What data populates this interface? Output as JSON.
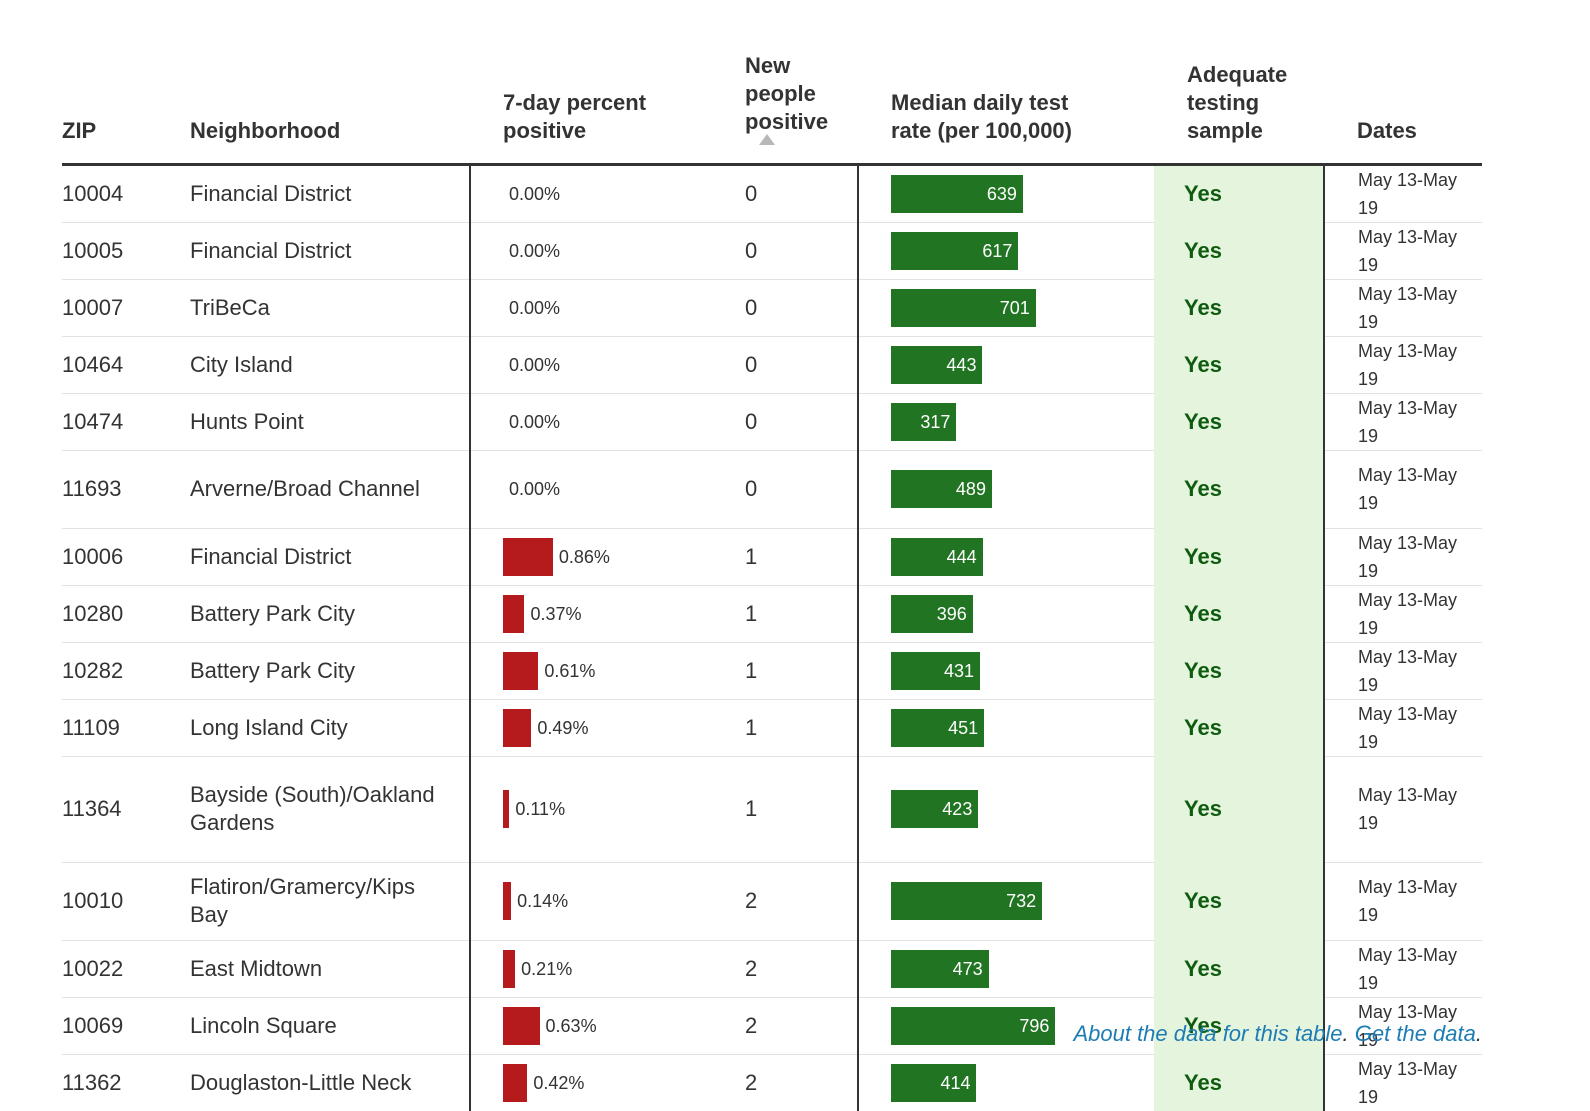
{
  "chart_data": {
    "type": "table",
    "columns": [
      {
        "key": "zip",
        "label": "ZIP"
      },
      {
        "key": "neighborhood",
        "label": "Neighborhood"
      },
      {
        "key": "pct_positive",
        "label": "7-day percent\npositive"
      },
      {
        "key": "new_positive",
        "label": "New\npeople\npositive",
        "sorted": "ascending"
      },
      {
        "key": "test_rate",
        "label": "Median daily test\nrate (per 100,000)"
      },
      {
        "key": "adequate",
        "label": "Adequate\ntesting\nsample"
      },
      {
        "key": "dates",
        "label": "Dates"
      }
    ],
    "rows": [
      {
        "zip": "10004",
        "neighborhood": "Financial District",
        "pct_positive": 0.0,
        "pct_label": "0.00%",
        "new_positive": "0",
        "test_rate": 639,
        "adequate": "Yes",
        "dates": "May 13-May 19",
        "lines": 1
      },
      {
        "zip": "10005",
        "neighborhood": "Financial District",
        "pct_positive": 0.0,
        "pct_label": "0.00%",
        "new_positive": "0",
        "test_rate": 617,
        "adequate": "Yes",
        "dates": "May 13-May 19",
        "lines": 1
      },
      {
        "zip": "10007",
        "neighborhood": "TriBeCa",
        "pct_positive": 0.0,
        "pct_label": "0.00%",
        "new_positive": "0",
        "test_rate": 701,
        "adequate": "Yes",
        "dates": "May 13-May 19",
        "lines": 1
      },
      {
        "zip": "10464",
        "neighborhood": "City Island",
        "pct_positive": 0.0,
        "pct_label": "0.00%",
        "new_positive": "0",
        "test_rate": 443,
        "adequate": "Yes",
        "dates": "May 13-May 19",
        "lines": 1
      },
      {
        "zip": "10474",
        "neighborhood": "Hunts Point",
        "pct_positive": 0.0,
        "pct_label": "0.00%",
        "new_positive": "0",
        "test_rate": 317,
        "adequate": "Yes",
        "dates": "May 13-May 19",
        "lines": 1
      },
      {
        "zip": "11693",
        "neighborhood": "Arverne/Broad Channel",
        "pct_positive": 0.0,
        "pct_label": "0.00%",
        "new_positive": "0",
        "test_rate": 489,
        "adequate": "Yes",
        "dates": "May 13-May 19",
        "lines": 2
      },
      {
        "zip": "10006",
        "neighborhood": "Financial District",
        "pct_positive": 0.86,
        "pct_label": "0.86%",
        "new_positive": "1",
        "test_rate": 444,
        "adequate": "Yes",
        "dates": "May 13-May 19",
        "lines": 1
      },
      {
        "zip": "10280",
        "neighborhood": "Battery Park City",
        "pct_positive": 0.37,
        "pct_label": "0.37%",
        "new_positive": "1",
        "test_rate": 396,
        "adequate": "Yes",
        "dates": "May 13-May 19",
        "lines": 1
      },
      {
        "zip": "10282",
        "neighborhood": "Battery Park City",
        "pct_positive": 0.61,
        "pct_label": "0.61%",
        "new_positive": "1",
        "test_rate": 431,
        "adequate": "Yes",
        "dates": "May 13-May 19",
        "lines": 1
      },
      {
        "zip": "11109",
        "neighborhood": "Long Island City",
        "pct_positive": 0.49,
        "pct_label": "0.49%",
        "new_positive": "1",
        "test_rate": 451,
        "adequate": "Yes",
        "dates": "May 13-May 19",
        "lines": 1
      },
      {
        "zip": "11364",
        "neighborhood": "Bayside (South)/Oakland Gardens",
        "pct_positive": 0.11,
        "pct_label": "0.11%",
        "new_positive": "1",
        "test_rate": 423,
        "adequate": "Yes",
        "dates": "May 13-May 19",
        "lines": 3
      },
      {
        "zip": "10010",
        "neighborhood": "Flatiron/Gramercy/Kips Bay",
        "pct_positive": 0.14,
        "pct_label": "0.14%",
        "new_positive": "2",
        "test_rate": 732,
        "adequate": "Yes",
        "dates": "May 13-May 19",
        "lines": 2
      },
      {
        "zip": "10022",
        "neighborhood": "East Midtown",
        "pct_positive": 0.21,
        "pct_label": "0.21%",
        "new_positive": "2",
        "test_rate": 473,
        "adequate": "Yes",
        "dates": "May 13-May 19",
        "lines": 1
      },
      {
        "zip": "10069",
        "neighborhood": "Lincoln Square",
        "pct_positive": 0.63,
        "pct_label": "0.63%",
        "new_positive": "2",
        "test_rate": 796,
        "adequate": "Yes",
        "dates": "May 13-May 19",
        "lines": 1
      },
      {
        "zip": "11362",
        "neighborhood": "Douglaston-Little Neck",
        "pct_positive": 0.42,
        "pct_label": "0.42%",
        "new_positive": "2",
        "test_rate": 414,
        "adequate": "Yes",
        "dates": "May 13-May 19",
        "lines": 1
      }
    ],
    "pct_bar_color": "#b51b1c",
    "rate_bar_color": "#217522",
    "adequate_bg_color": "#e5f4dd"
  },
  "footer": {
    "about_link": "About the data for this table",
    "separator": ". ",
    "get_link": "Get the data",
    "end": "."
  }
}
